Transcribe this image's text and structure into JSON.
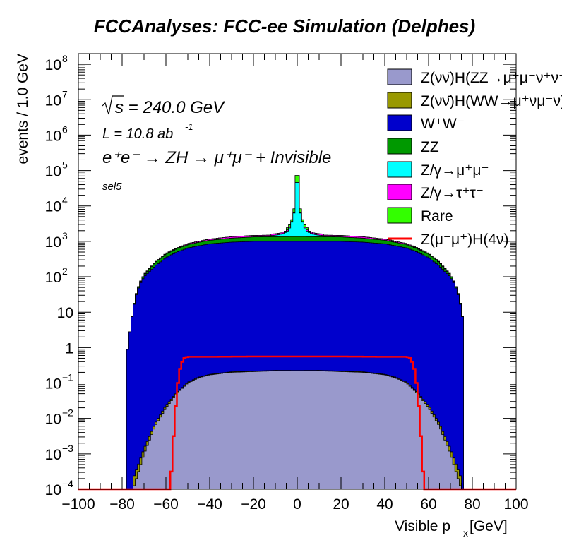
{
  "chart_data": {
    "type": "area",
    "title": "FCCAnalyses: FCC-ee Simulation (Delphes)",
    "xlabel_main": "Visible p",
    "xlabel_sub": "x",
    "xlabel_unit": " [GeV]",
    "ylabel": "events / 1.0 GeV",
    "xlim": [
      -100,
      100
    ],
    "ylim": [
      0.0001,
      200000000
    ],
    "y_scale": "log",
    "x_ticks": [
      "−100",
      "−80",
      "−60",
      "−40",
      "−20",
      "0",
      "20",
      "40",
      "60",
      "80",
      "100"
    ],
    "y_ticks": [
      {
        "base": "10",
        "exp": "−4",
        "value": 0.0001
      },
      {
        "base": "10",
        "exp": "−3",
        "value": 0.001
      },
      {
        "base": "10",
        "exp": "−2",
        "value": 0.01
      },
      {
        "base": "10",
        "exp": "−1",
        "value": 0.1
      },
      {
        "base": "1",
        "exp": "",
        "value": 1
      },
      {
        "base": "10",
        "exp": "",
        "value": 10
      },
      {
        "base": "10",
        "exp": "2",
        "value": 100
      },
      {
        "base": "10",
        "exp": "3",
        "value": 1000
      },
      {
        "base": "10",
        "exp": "4",
        "value": 10000
      },
      {
        "base": "10",
        "exp": "5",
        "value": 100000
      },
      {
        "base": "10",
        "exp": "6",
        "value": 1000000
      },
      {
        "base": "10",
        "exp": "7",
        "value": 10000000
      },
      {
        "base": "10",
        "exp": "8",
        "value": 100000000
      }
    ],
    "annotations": {
      "sqrt_s": "s = 240.0 GeV",
      "lumi": "L = 10.8 ab",
      "lumi_exp": "-1",
      "process": "e⁺e⁻ → ZH → μ⁺μ⁻ + Invisible",
      "selection": "sel5"
    },
    "series": [
      {
        "name": "Z(νν̄)H(ZZ→μ⁺μ⁻ν⁺ν⁻)",
        "color": "#9999cc",
        "x": [
          -75,
          -70,
          -65,
          -60,
          -55,
          -50,
          -45,
          -40,
          -30,
          -20,
          -10,
          0,
          10,
          20,
          30,
          40,
          45,
          50,
          55,
          60,
          65,
          70,
          75
        ],
        "y": [
          0.0001,
          0.001,
          0.006,
          0.02,
          0.05,
          0.1,
          0.14,
          0.17,
          0.2,
          0.21,
          0.22,
          0.22,
          0.22,
          0.21,
          0.2,
          0.17,
          0.14,
          0.1,
          0.05,
          0.02,
          0.006,
          0.001,
          0.0001
        ]
      },
      {
        "name": "Z(νν̄)H(WW→μ⁺νμ⁻ν)",
        "color": "#999900",
        "x": [
          -75,
          -70,
          -65,
          -60,
          -50,
          -40,
          -30,
          -20,
          -10,
          0,
          10,
          20,
          30,
          40,
          50,
          60,
          65,
          70,
          75
        ],
        "y": [
          0.0001,
          0.0004,
          0.001,
          0.003,
          0.005,
          0.006,
          0.008,
          0.007,
          0.008,
          0.006,
          0.008,
          0.007,
          0.008,
          0.006,
          0.005,
          0.003,
          0.001,
          0.0004,
          0.0001
        ]
      },
      {
        "name": "W⁺W⁻",
        "color": "#0000cc",
        "x": [
          -78,
          -76,
          -74,
          -72,
          -70,
          -65,
          -60,
          -55,
          -50,
          -45,
          -40,
          -30,
          -20,
          -10,
          0,
          10,
          20,
          30,
          40,
          45,
          50,
          55,
          60,
          65,
          70,
          72,
          74,
          76
        ],
        "y": [
          0.5,
          5,
          25,
          60,
          100,
          200,
          350,
          500,
          650,
          750,
          850,
          950,
          1000,
          1000,
          1000,
          1000,
          1000,
          950,
          850,
          750,
          650,
          500,
          350,
          200,
          100,
          60,
          25,
          5
        ]
      },
      {
        "name": "ZZ",
        "color": "#009900",
        "x": [
          -75,
          -70,
          -65,
          -60,
          -50,
          -40,
          -30,
          -20,
          -10,
          0,
          10,
          20,
          30,
          40,
          50,
          60,
          65,
          70,
          75
        ],
        "y": [
          1,
          12,
          50,
          90,
          160,
          220,
          280,
          330,
          350,
          370,
          350,
          330,
          280,
          220,
          160,
          90,
          50,
          12,
          1
        ]
      },
      {
        "name": "Z/γ→μ⁺μ⁻",
        "color": "#00ffff",
        "x": [
          -12,
          -8,
          -6,
          -4,
          -3,
          -2,
          -1,
          0,
          1,
          2,
          3,
          4,
          6,
          8,
          12
        ],
        "y": [
          100,
          200,
          350,
          700,
          1500,
          3000,
          8000,
          250000,
          8000,
          3000,
          1500,
          700,
          350,
          200,
          100
        ]
      },
      {
        "name": "Z/γ→τ⁺τ⁻",
        "color": "#ff00ff",
        "x": [
          -76,
          -74,
          -72,
          -70,
          -65,
          -60,
          -55,
          -50,
          -45,
          -40,
          -30,
          -20,
          -10,
          0,
          10,
          20,
          30,
          40,
          45,
          50,
          55,
          60,
          65,
          70,
          72,
          74,
          76
        ],
        "y": [
          0.0001,
          0.3,
          2,
          4,
          8,
          15,
          30,
          50,
          70,
          90,
          120,
          140,
          150,
          160,
          150,
          140,
          120,
          90,
          70,
          50,
          30,
          15,
          8,
          4,
          2,
          0.3,
          0.0001
        ]
      },
      {
        "name": "Rare",
        "color": "#33ff00",
        "x": [
          -5,
          -2,
          0,
          2,
          5
        ],
        "y": [
          300,
          500,
          100000,
          500,
          300
        ]
      },
      {
        "name": "Z(μ⁻μ⁺)H(4ν)",
        "color": "#ff0000",
        "style": "line",
        "x": [
          -100,
          -60,
          -58,
          -57,
          -56,
          -55,
          -54,
          -52,
          -50,
          -40,
          -20,
          0,
          20,
          40,
          50,
          52,
          54,
          55,
          56,
          57,
          58,
          60,
          100
        ],
        "y": [
          0.0001,
          0.0001,
          0.0001,
          0.001,
          0.01,
          0.05,
          0.2,
          0.5,
          0.55,
          0.55,
          0.56,
          0.56,
          0.56,
          0.55,
          0.55,
          0.5,
          0.2,
          0.05,
          0.01,
          0.001,
          0.0001,
          0.0001,
          0.0001
        ]
      }
    ],
    "legend_position": "top-right",
    "grid": false
  }
}
